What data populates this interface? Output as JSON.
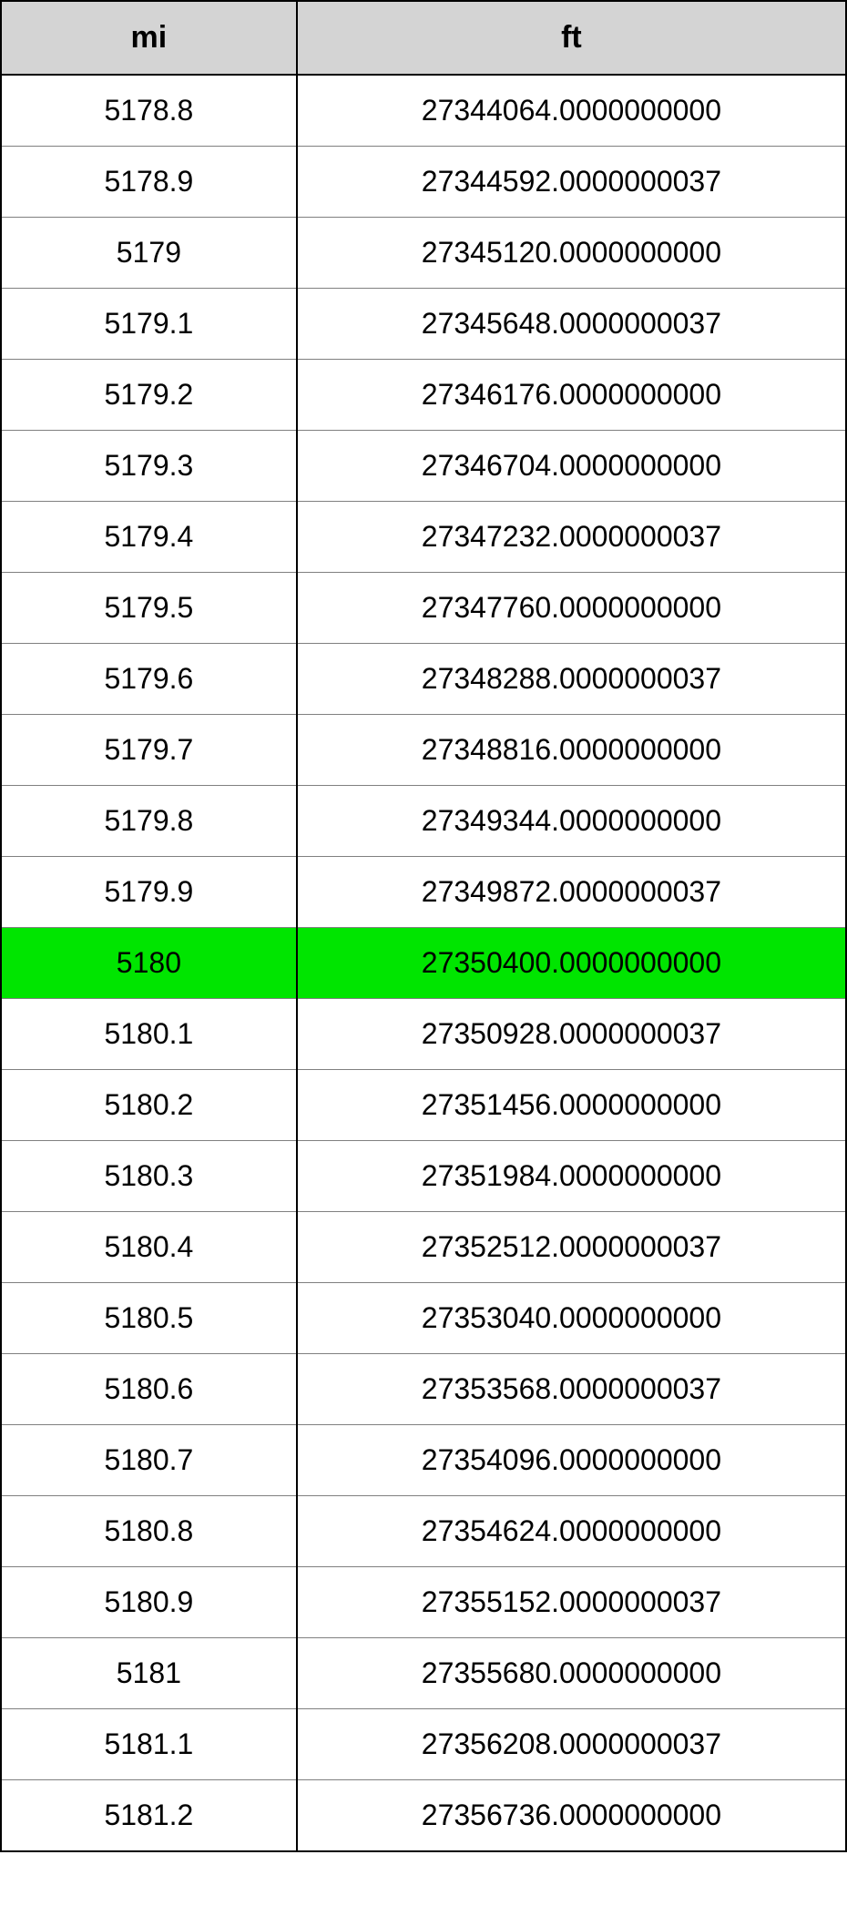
{
  "table": {
    "type": "table",
    "columns": [
      {
        "key": "mi",
        "label": "mi",
        "width_pct": 35,
        "align": "center"
      },
      {
        "key": "ft",
        "label": "ft",
        "width_pct": 65,
        "align": "center"
      }
    ],
    "header_background": "#d4d4d4",
    "header_fontsize": 34,
    "header_fontweight": "bold",
    "cell_fontsize": 32,
    "border_color": "#000000",
    "grid_color": "#808080",
    "background_color": "#ffffff",
    "highlight_color": "#00e500",
    "highlighted_row_index": 12,
    "rows": [
      {
        "mi": "5178.8",
        "ft": "27344064.0000000000"
      },
      {
        "mi": "5178.9",
        "ft": "27344592.0000000037"
      },
      {
        "mi": "5179",
        "ft": "27345120.0000000000"
      },
      {
        "mi": "5179.1",
        "ft": "27345648.0000000037"
      },
      {
        "mi": "5179.2",
        "ft": "27346176.0000000000"
      },
      {
        "mi": "5179.3",
        "ft": "27346704.0000000000"
      },
      {
        "mi": "5179.4",
        "ft": "27347232.0000000037"
      },
      {
        "mi": "5179.5",
        "ft": "27347760.0000000000"
      },
      {
        "mi": "5179.6",
        "ft": "27348288.0000000037"
      },
      {
        "mi": "5179.7",
        "ft": "27348816.0000000000"
      },
      {
        "mi": "5179.8",
        "ft": "27349344.0000000000"
      },
      {
        "mi": "5179.9",
        "ft": "27349872.0000000037"
      },
      {
        "mi": "5180",
        "ft": "27350400.0000000000"
      },
      {
        "mi": "5180.1",
        "ft": "27350928.0000000037"
      },
      {
        "mi": "5180.2",
        "ft": "27351456.0000000000"
      },
      {
        "mi": "5180.3",
        "ft": "27351984.0000000000"
      },
      {
        "mi": "5180.4",
        "ft": "27352512.0000000037"
      },
      {
        "mi": "5180.5",
        "ft": "27353040.0000000000"
      },
      {
        "mi": "5180.6",
        "ft": "27353568.0000000037"
      },
      {
        "mi": "5180.7",
        "ft": "27354096.0000000000"
      },
      {
        "mi": "5180.8",
        "ft": "27354624.0000000000"
      },
      {
        "mi": "5180.9",
        "ft": "27355152.0000000037"
      },
      {
        "mi": "5181",
        "ft": "27355680.0000000000"
      },
      {
        "mi": "5181.1",
        "ft": "27356208.0000000037"
      },
      {
        "mi": "5181.2",
        "ft": "27356736.0000000000"
      }
    ]
  }
}
